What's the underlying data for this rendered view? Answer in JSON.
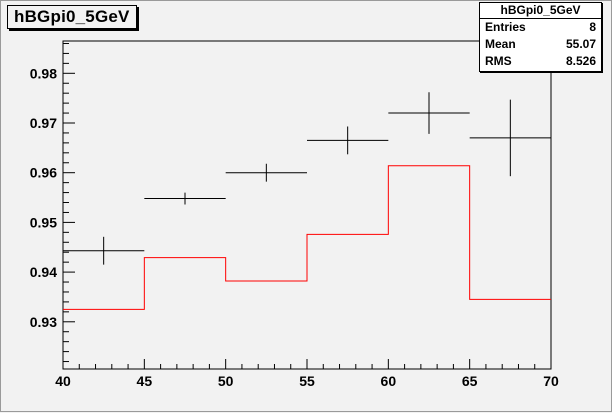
{
  "title": "hBGpi0_5GeV",
  "stats": {
    "header": "hBGpi0_5GeV",
    "rows": [
      {
        "label": "Entries",
        "value": "8"
      },
      {
        "label": "Mean",
        "value": "55.07"
      },
      {
        "label": "RMS",
        "value": "8.526"
      }
    ]
  },
  "chart_data": {
    "type": "bar",
    "title": "hBGpi0_5GeV",
    "xlabel": "",
    "ylabel": "",
    "xlim": [
      40,
      70
    ],
    "ylim": [
      0.9205,
      0.9865
    ],
    "x_ticks": [
      "40",
      "45",
      "50",
      "55",
      "60",
      "65",
      "70"
    ],
    "y_ticks": [
      "0.93",
      "0.94",
      "0.95",
      "0.96",
      "0.97",
      "0.98"
    ],
    "grid": false,
    "series": [
      {
        "style": "error-points",
        "color": "#000000",
        "points": [
          {
            "x": 42.5,
            "y": 0.9443,
            "xerr": 2.5,
            "yerr": 0.0028
          },
          {
            "x": 47.5,
            "y": 0.9548,
            "xerr": 2.5,
            "yerr": 0.0012
          },
          {
            "x": 52.5,
            "y": 0.96,
            "xerr": 2.5,
            "yerr": 0.0018
          },
          {
            "x": 57.5,
            "y": 0.9665,
            "xerr": 2.5,
            "yerr": 0.0028
          },
          {
            "x": 62.5,
            "y": 0.972,
            "xerr": 2.5,
            "yerr": 0.0042
          },
          {
            "x": 67.5,
            "y": 0.967,
            "xerr": 2.5,
            "yerr": 0.0077
          }
        ]
      },
      {
        "style": "step-histogram",
        "color": "#ff0000",
        "bins": [
          {
            "x_low": 40,
            "x_high": 45,
            "y": 0.9325
          },
          {
            "x_low": 45,
            "x_high": 50,
            "y": 0.9429
          },
          {
            "x_low": 50,
            "x_high": 55,
            "y": 0.9382
          },
          {
            "x_low": 55,
            "x_high": 60,
            "y": 0.9476
          },
          {
            "x_low": 60,
            "x_high": 65,
            "y": 0.9614
          },
          {
            "x_low": 65,
            "x_high": 70,
            "y": 0.9345
          }
        ]
      }
    ]
  }
}
